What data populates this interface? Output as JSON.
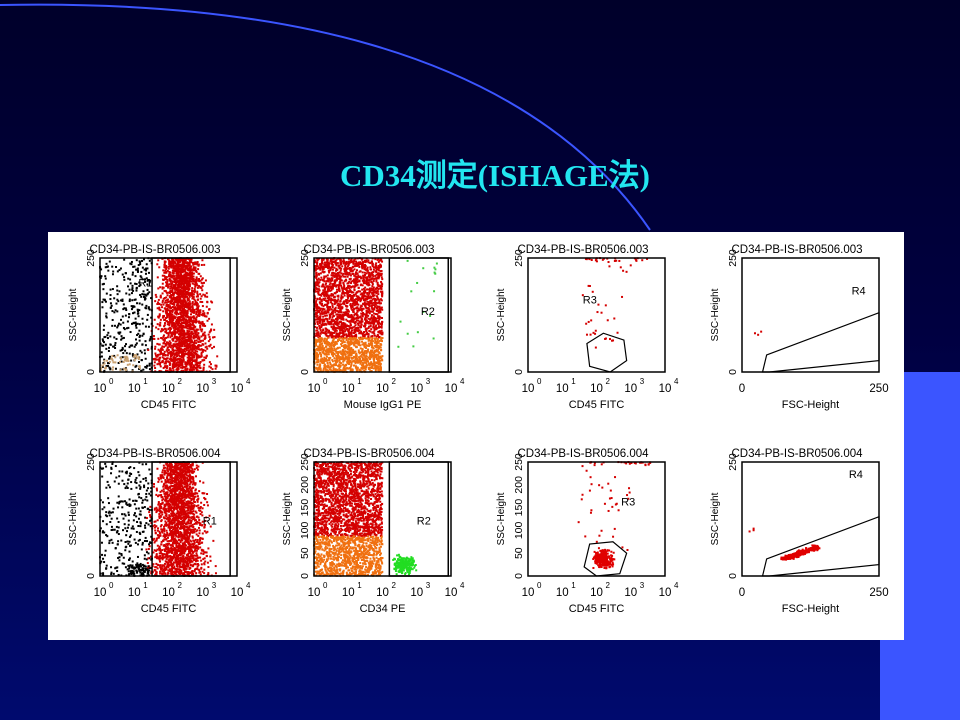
{
  "slide": {
    "title": "CD34测定(ISHAGE法)",
    "colors": {
      "title": "#22e6f0",
      "background": "#000040",
      "accent": "#3b55ff"
    }
  },
  "plots": [
    {
      "title": "CD34-PB-IS-BR0506.003",
      "ylabel": "SSC-Height",
      "xlabel": "CD45 FITC",
      "scale": "log",
      "yticks": [
        "0",
        "250"
      ],
      "xticks": [
        "10",
        "10",
        "10",
        "10",
        "10"
      ],
      "xexp": [
        "0",
        "1",
        "2",
        "3",
        "4"
      ],
      "region": "R1"
    },
    {
      "title": "CD34-PB-IS-BR0506.003",
      "ylabel": "SSC-Height",
      "xlabel": "Mouse IgG1 PE",
      "scale": "log",
      "yticks": [
        "0",
        "250"
      ],
      "xticks": [
        "10",
        "10",
        "10",
        "10",
        "10"
      ],
      "xexp": [
        "0",
        "1",
        "2",
        "3",
        "4"
      ],
      "region": "R2"
    },
    {
      "title": "CD34-PB-IS-BR0506.003",
      "ylabel": "SSC-Height",
      "xlabel": "CD45 FITC",
      "scale": "log",
      "yticks": [
        "0",
        "250"
      ],
      "xticks": [
        "10",
        "10",
        "10",
        "10",
        "10"
      ],
      "xexp": [
        "0",
        "1",
        "2",
        "3",
        "4"
      ],
      "region": "R3"
    },
    {
      "title": "CD34-PB-IS-BR0506.003",
      "ylabel": "SSC-Height",
      "xlabel": "FSC-Height",
      "scale": "lin",
      "yticks": [
        "0",
        "250"
      ],
      "xticks": [
        "0",
        "250"
      ],
      "xexp": [
        "",
        ""
      ],
      "region": "R4"
    },
    {
      "title": "CD34-PB-IS-BR0506.004",
      "ylabel": "SSC-Height",
      "xlabel": "CD45 FITC",
      "scale": "log",
      "yticks": [
        "0",
        "250"
      ],
      "xticks": [
        "10",
        "10",
        "10",
        "10",
        "10"
      ],
      "xexp": [
        "0",
        "1",
        "2",
        "3",
        "4"
      ],
      "region": "R1"
    },
    {
      "title": "CD34-PB-IS-BR0506.004",
      "ylabel": "SSC-Height",
      "xlabel": "CD34 PE",
      "scale": "log",
      "yticks": [
        "0",
        "50",
        "100",
        "150",
        "200",
        "250"
      ],
      "xticks": [
        "10",
        "10",
        "10",
        "10",
        "10"
      ],
      "xexp": [
        "0",
        "1",
        "2",
        "3",
        "4"
      ],
      "region": "R2"
    },
    {
      "title": "CD34-PB-IS-BR0506.004",
      "ylabel": "SSC-Height",
      "xlabel": "CD45 FITC",
      "scale": "log",
      "yticks": [
        "0",
        "50",
        "100",
        "150",
        "200",
        "250"
      ],
      "xticks": [
        "10",
        "10",
        "10",
        "10",
        "10"
      ],
      "xexp": [
        "0",
        "1",
        "2",
        "3",
        "4"
      ],
      "region": "R3"
    },
    {
      "title": "CD34-PB-IS-BR0506.004",
      "ylabel": "SSC-Height",
      "xlabel": "FSC-Height",
      "scale": "lin",
      "yticks": [
        "0",
        "250"
      ],
      "xticks": [
        "0",
        "250"
      ],
      "xexp": [
        "",
        ""
      ],
      "region": "R4"
    }
  ]
}
